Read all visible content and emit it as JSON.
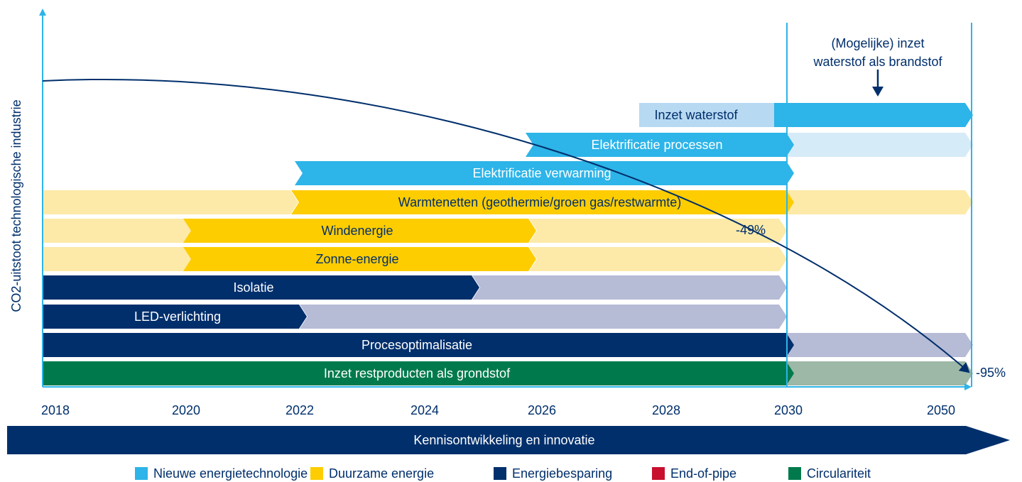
{
  "y_axis_label": "CO2-uitstoot technologische industrie",
  "years": [
    "2018",
    "2020",
    "2022",
    "2024",
    "2026",
    "2028",
    "2030",
    "2050"
  ],
  "rows": [
    {
      "label": "Inzet waterstof"
    },
    {
      "label": "Elektrificatie processen"
    },
    {
      "label": "Elektrificatie verwarming"
    },
    {
      "label": "Warmtenetten (geothermie/groen gas/restwarmte)"
    },
    {
      "label": "Windenergie"
    },
    {
      "label": "Zonne-energie"
    },
    {
      "label": "Isolatie"
    },
    {
      "label": "LED-verlichting"
    },
    {
      "label": "Procesoptimalisatie"
    },
    {
      "label": "Inzet restproducten als grondstof"
    }
  ],
  "annotations": {
    "target_2030": "-49%",
    "target_2050": "-95%",
    "hydrogen_note": [
      "(Mogelijke) inzet",
      "waterstof als brandstof"
    ]
  },
  "bottom_arrow": "Kennisontwikkeling en innovatie",
  "legend": [
    "Nieuwe energietechnologie",
    "Duurzame energie",
    "Energiebesparing",
    "End-of-pipe",
    "Circulariteit"
  ]
}
